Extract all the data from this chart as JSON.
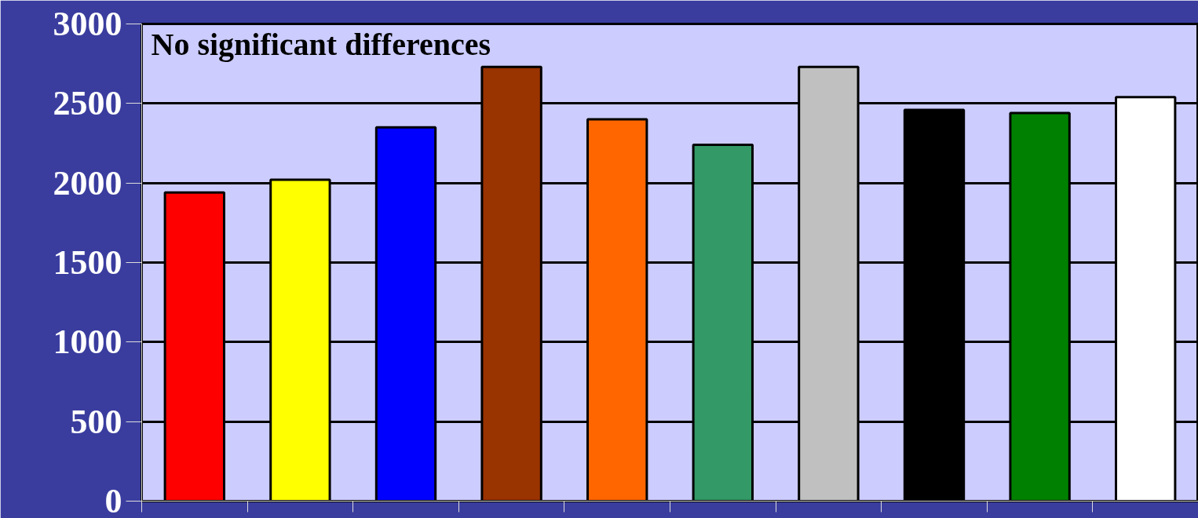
{
  "chart_data": {
    "type": "bar",
    "categories": [
      null,
      null,
      null,
      null,
      null,
      null,
      null,
      null,
      null,
      null
    ],
    "values": [
      1940,
      2020,
      2350,
      2730,
      2400,
      2240,
      2730,
      2460,
      2440,
      2540
    ],
    "colors": [
      "#ff0000",
      "#ffff00",
      "#0000ff",
      "#993300",
      "#ff6600",
      "#339966",
      "#c0c0c0",
      "#000000",
      "#008000",
      "#ffffff"
    ],
    "ylim": [
      0,
      3000
    ],
    "yticks": [
      0,
      500,
      1000,
      1500,
      2000,
      2500,
      3000
    ],
    "grid": "y",
    "tick_labels": "y",
    "annotations": [
      "No significant differences"
    ]
  }
}
